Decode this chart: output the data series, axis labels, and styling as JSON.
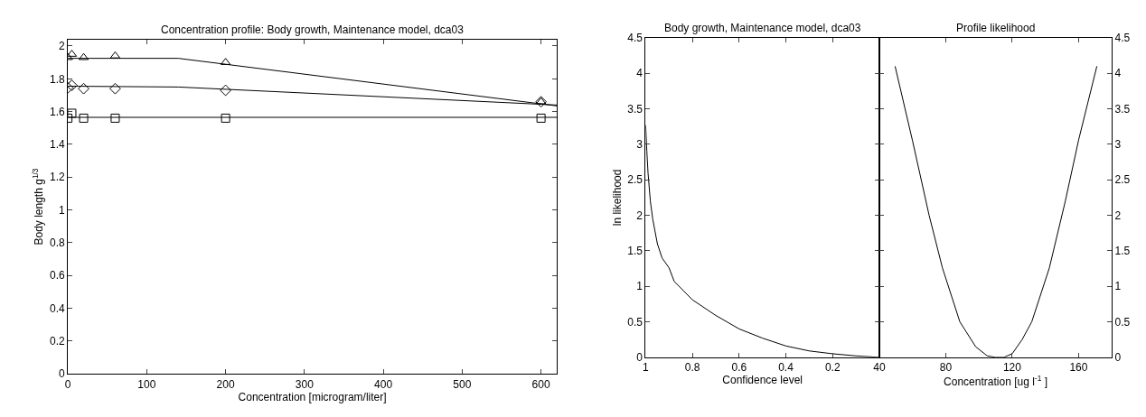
{
  "chart_data": [
    {
      "type": "scatter",
      "title": "Concentration profile: Body growth, Maintenance model, dca03",
      "xlabel": "Concentration [microgram/liter]",
      "ylabel": "Body length g$^{1/3}$",
      "xlim": [
        0,
        620
      ],
      "xticks": [
        0,
        100,
        200,
        300,
        400,
        500,
        600
      ],
      "ylim": [
        0,
        2.04
      ],
      "yticks": [
        0,
        0.2,
        0.4,
        0.6,
        0.8,
        1,
        1.2,
        1.4,
        1.6,
        1.8,
        2
      ],
      "series": [
        {
          "type": "scatter",
          "marker": "triangle",
          "color": "#000000",
          "x": [
            0,
            5,
            20,
            60,
            200,
            600
          ],
          "values": [
            1.93,
            1.95,
            1.93,
            1.94,
            1.9,
            1.66
          ]
        },
        {
          "type": "scatter",
          "marker": "diamond",
          "color": "#000000",
          "x": [
            0,
            5,
            20,
            60,
            200,
            600
          ],
          "values": [
            1.745,
            1.76,
            1.74,
            1.74,
            1.73,
            1.66
          ]
        },
        {
          "type": "scatter",
          "marker": "square",
          "color": "#000000",
          "x": [
            0,
            5,
            20,
            60,
            200,
            600
          ],
          "values": [
            1.56,
            1.59,
            1.56,
            1.56,
            1.56,
            1.56
          ]
        },
        {
          "type": "line",
          "marker": "none",
          "color": "#000000",
          "x": [
            0,
            140,
            620
          ],
          "values": [
            1.925,
            1.925,
            1.635
          ]
        },
        {
          "type": "line",
          "marker": "none",
          "color": "#000000",
          "x": [
            0,
            140,
            620
          ],
          "values": [
            1.755,
            1.75,
            1.64
          ]
        },
        {
          "type": "line",
          "marker": "none",
          "color": "#000000",
          "x": [
            0,
            620
          ],
          "values": [
            1.565,
            1.565
          ]
        }
      ]
    },
    {
      "type": "line",
      "title": "Body growth, Maintenance model, dca03",
      "xlabel": "Confidence level",
      "ylabel": "ln likelihood",
      "xlim": [
        1,
        0
      ],
      "xticks": [
        1,
        0.8,
        0.6,
        0.4,
        0.2
      ],
      "ylim": [
        0,
        4.5
      ],
      "yticks": [
        0,
        0.5,
        1,
        1.5,
        2,
        2.5,
        3,
        3.5,
        4,
        4.5
      ],
      "series": [
        {
          "color": "#000000",
          "x": [
            1,
            0.995,
            0.99,
            0.98,
            0.97,
            0.95,
            0.93,
            0.9,
            0.878,
            0.8,
            0.7,
            0.6,
            0.5,
            0.4,
            0.3,
            0.2,
            0.1,
            0
          ],
          "values": [
            3.27,
            2.9,
            2.6,
            2.2,
            1.95,
            1.6,
            1.4,
            1.26,
            1.07,
            0.81,
            0.59,
            0.4,
            0.27,
            0.16,
            0.09,
            0.05,
            0.02,
            0
          ]
        }
      ]
    },
    {
      "type": "line",
      "title": "Profile likelihood",
      "xlabel": "Concentration [ug l$^{-1}$ ]",
      "xlim": [
        40,
        180
      ],
      "xticks": [
        40,
        80,
        120,
        160
      ],
      "y2lim": [
        0,
        4.5
      ],
      "y2ticks": [
        0,
        0.5,
        1,
        1.5,
        2,
        2.5,
        3,
        3.5,
        4,
        4.5
      ],
      "series": [
        {
          "axis": "y2",
          "color": "#000000",
          "x": [
            49.5,
            59.9,
            70,
            78,
            88.5,
            98,
            105,
            110,
            115,
            120,
            126,
            131.8,
            142.4,
            152,
            160,
            171
          ],
          "values": [
            4.1,
            3.06,
            2.0,
            1.26,
            0.5,
            0.15,
            0.02,
            0,
            0,
            0.05,
            0.25,
            0.5,
            1.26,
            2.2,
            3.06,
            4.1
          ]
        }
      ]
    }
  ]
}
